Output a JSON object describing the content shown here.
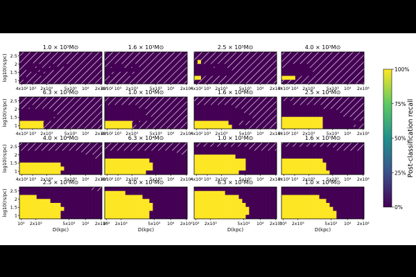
{
  "colors": {
    "background": "#000000",
    "figure": "#ffffff",
    "low": "#440154",
    "mid": "#21918c",
    "high": "#fde725",
    "hatch": "#ffffff"
  },
  "chart_data": {
    "type": "heatmap",
    "ylabel": "log10(rs/pc)",
    "xlabel": "D(kpc)",
    "colorbar": {
      "label": "Post-classification recall",
      "ticks": [
        "0%",
        "25%",
        "50%",
        "75%",
        "100%"
      ],
      "range": [
        0,
        1
      ]
    },
    "row_xticks": [
      [
        "4x10²",
        "10³",
        "2x10³",
        "5x10³",
        "10⁴",
        "2x10⁴"
      ],
      [
        "4x10²",
        "10³",
        "2x10³",
        "5x10³",
        "10⁴",
        "2x10⁴"
      ],
      [
        "4x10²",
        "10³",
        "2x10³",
        "5x10³",
        "10⁴",
        "2x10⁴"
      ],
      [
        "10³",
        "2x10³",
        "5x10³",
        "10⁴",
        "2x10⁴"
      ]
    ],
    "yticks": [
      "2.5",
      "2",
      "1.5",
      "1"
    ],
    "panels": [
      {
        "title": "1.0 × 10³M⊙",
        "grid": [
          "HHHHHHHHHHHHHHHHHHHHHHHH",
          "HHHHHHHHHHHHHHHHHHHHHHHH",
          "HHH0HHHHHHHHHHHHHHHHHHHH",
          "HH00H0HHH00HH0HHHHHHHHHH",
          "HH000H000H0HHHHHHHHHHHHH",
          "HHHHH00HHHHHHHHHHHHHHHHH",
          "H0HHHHHHHHHHHHHHHHHHHHHH",
          "HHHHHHHHHHHHHHHHHHHHHHHH"
        ]
      },
      {
        "title": "1.6 × 10³M⊙",
        "grid": [
          "HHHHHHHHHHHHHHHHHHHHHHHH",
          "HHHHHHHHHHHHHHHHHHHHHHHH",
          "HHHHHHHHHHHHHHHHHHHHHHHH",
          "HH000HHH00HHHHHHHHHHHHHH",
          "0000000000HHHHHHHHHHHHHH",
          "00HHHHH0HHHHHHHHHHHHHHHH",
          "HHHHHHHHHHHHHHHHHHHHHHHH",
          "HHHHHHHHHHHHHHHHHHHHHHHH"
        ]
      },
      {
        "title": "2.5 × 10³M⊙",
        "grid": [
          "HHHHHHHHHHHHHHHHHHHHHHHH",
          "HHHHHHHHHHHHHHHHHHHHHHHH",
          "H7HHHHHHHHHHHHHHHHHHHHHH",
          "00000H000HHHHHHHHHHHHHHH",
          "00000000000HHHHHHHHHHHHH",
          "00000000000HHHHHHHHHHHHH",
          "99HHHHHHHHHHHHHHHHHHHHHH",
          "HHHHHHHHHHHHHHHHHHHHHHHH"
        ]
      },
      {
        "title": "4.0 × 10³M⊙",
        "grid": [
          "HHHHHHHHHHHHHHHHHHHHHHHH",
          "HHHHHHHHHHHHHHHHHHHHHHHH",
          "HHHHHHHHHHHHHHHHHHHHHHHH",
          "HH000000HHHHHHHHHHHHHHHH",
          "000000000HHHHHHHHHHHHHHH",
          "0000000000HHHHHHHHHHHHHH",
          "9999HHHHHHHHHHHHHHHHHHHH",
          "HHHHHHHHHHHHHHHHHHHHHHHH"
        ]
      },
      {
        "title": "6.3 × 10³M⊙",
        "grid": [
          "HHHHHHHHHHHHHHHHHHHHHHHH",
          "HHHHHHHHHHHHHHHHHHHHHHHH",
          "HHH0HHHHHHHHHHHHHHHHHHHH",
          "0000000000HHHHHHHHHHHHHH",
          "00000000000HHHHHHHHHHHHH",
          "0000000000HHHHHHHHHHHHHH",
          "9999999HHHHHHHHHHHHHHHHH",
          "9999999HHHHHHHHHHHHHHHHH"
        ]
      },
      {
        "title": "1.0 × 10⁴M⊙",
        "grid": [
          "HHHHHHHHHHHHHHHHHHHHHHHH",
          "HHHHHHHHHHHHHHHHHHHHHHHH",
          "0000000000HHHHHHHHHHHHHH",
          "000000000000HHHHHHHHHHHH",
          "000000000000HHHHHHHHHHHH",
          "00000000000000HHHHHHHHHH",
          "99999999H0HHHHHHHHHHHHHH",
          "99999999HHHHHHHHHHHHHHHH"
        ]
      },
      {
        "title": "1.6 × 10⁴M⊙",
        "grid": [
          "HHHHHHHHHHHHHHHHHHHHHHHH",
          "HHHHHHHHHHHHHHHHHHHHHHHH",
          "000000000000HHHHHHHHHHHH",
          "00000000000000HHHHHHHHHH",
          "0000000000000000HHHHHHHH",
          "00000000000000000HHHHHHH",
          "9999999999000HHHHHHHHHHH",
          "999999999990000HHHHHHHHH"
        ]
      },
      {
        "title": "2.5 × 10⁴M⊙",
        "grid": [
          "HHHHHHHHHHHHHHHHHHHHHHHH",
          "000HHHHHHHHHHHHHHHHHHHHH",
          "000000000000HHHHHHHHHHHH",
          "0000000000000000HHHHHHHH",
          "000000000000000000HHHHHH",
          "999999999999000000000HHH",
          "99999999999900000000000H",
          "999999999999000000000HHH"
        ]
      },
      {
        "title": "4.0 × 10⁴M⊙",
        "grid": [
          "HHHHHHHHHHHHHHHHHHHHHHHH",
          "HHHHHHHHHHHHHHHHHHHHHHHH",
          "000000000000000000HHHHHH",
          "0000000000000000000000HH",
          "000000000000000000000000",
          "999999999999000000000000",
          "999999999999900000000000",
          "999999999999000000000000"
        ]
      },
      {
        "title": "6.3 × 10⁴M⊙",
        "grid": [
          "HHHHHHHHHHHHHHHHHHHHHHHH",
          "HHHHHHHHHHHHHHHHHHHHHHHH",
          "000000000000000000000HHH",
          "000000000000000000000000",
          "999999999999900000000000",
          "999999999999990000000000",
          "999999999999990000000000",
          "999999999999000000000000"
        ]
      },
      {
        "title": "1.0 × 10⁵M⊙",
        "grid": [
          "HHHHHHHHHHHHHHHHHHHHHHHH",
          "0000000000000000HHHHHHHH",
          "000000000000000000000000",
          "999999999999000000000000",
          "999999999999999000000000",
          "999999999999999000000000",
          "999999999999999000000000",
          "999999999999900000000000"
        ]
      },
      {
        "title": "1.6 × 10⁵M⊙",
        "grid": [
          "HHHHHHHHHHHHHHHHHHHHHHHH",
          "000000000000000HHHHHHHHH",
          "000000000000000000000000",
          "000000000000000000000000",
          "999999999999000000000000",
          "999999999999900000000000",
          "999999999999900000000000",
          "999999999999990000000000"
        ]
      },
      {
        "title": "2.5 × 10⁵M⊙",
        "grid": [
          "000000000000000000000HHH",
          "000000000000000000000000",
          "999990000000000000000000",
          "999999999000000000000000",
          "999999999999000000000000",
          "999999999999900000000000",
          "999999999999000000000000",
          "999999999999000000000000"
        ]
      },
      {
        "title": "4.0 × 10⁵M⊙",
        "grid": [
          "000000000000000000000000",
          "999999000000000000000000",
          "999999999990000000000000",
          "999999999999900000000000",
          "999999999999990000000000",
          "999999999999990000000000",
          "999999999999900000000000",
          "999999999999900000000000"
        ]
      },
      {
        "title": "6.3 × 10⁵M⊙",
        "grid": [
          "000000000000000000000000",
          "999999999000000000000000",
          "999999999999900000000000",
          "999999999999990000000000",
          "999999999999999000000000",
          "999999999999999900000000",
          "999999999999999900000000",
          "999999999999999000000000"
        ]
      },
      {
        "title": "1.0 × 10⁶M⊙",
        "grid": [
          "000000000000000000000000",
          "000000000000000000000000",
          "999999999990000000000000",
          "999999999999900000000000",
          "999999999999990000000000",
          "999999999999999000000000",
          "999999999999999900000000",
          "999999999999999900000000"
        ]
      }
    ]
  }
}
